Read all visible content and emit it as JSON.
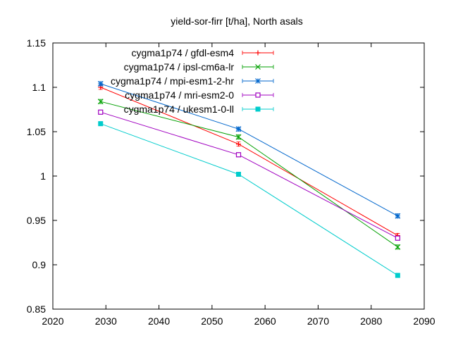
{
  "chart_data": {
    "type": "line",
    "title": "yield-sor-firr [t/ha], North asals",
    "xlabel": "",
    "ylabel": "",
    "xlim": [
      2020,
      2090
    ],
    "ylim": [
      0.85,
      1.15
    ],
    "xticks": [
      2020,
      2030,
      2040,
      2050,
      2060,
      2070,
      2080,
      2090
    ],
    "yticks": [
      0.85,
      0.9,
      0.95,
      1,
      1.05,
      1.1,
      1.15
    ],
    "ytick_labels": [
      "0.85",
      "0.9",
      "0.95",
      "1",
      "1.05",
      "1.1",
      "1.15"
    ],
    "grid": false,
    "legend_position": "top-right",
    "series": [
      {
        "name": "cygma1p74 / gfdl-esm4",
        "color": "#ff0000",
        "marker": "plus",
        "x": [
          2029,
          2055,
          2085
        ],
        "y": [
          1.1,
          1.036,
          0.933
        ]
      },
      {
        "name": "cygma1p74 / ipsl-cm6a-lr",
        "color": "#00a000",
        "marker": "cross",
        "x": [
          2029,
          2055,
          2085
        ],
        "y": [
          1.084,
          1.044,
          0.92
        ]
      },
      {
        "name": "cygma1p74 / mpi-esm1-2-hr",
        "color": "#0066cc",
        "marker": "star",
        "x": [
          2029,
          2055,
          2085
        ],
        "y": [
          1.104,
          1.053,
          0.955
        ]
      },
      {
        "name": "cygma1p74 / mri-esm2-0",
        "color": "#a000c0",
        "marker": "square-open",
        "x": [
          2029,
          2055,
          2085
        ],
        "y": [
          1.072,
          1.024,
          0.93
        ]
      },
      {
        "name": "cygma1p74 / ukesm1-0-ll",
        "color": "#00cccc",
        "marker": "square-filled",
        "x": [
          2029,
          2055,
          2085
        ],
        "y": [
          1.059,
          1.002,
          0.888
        ]
      }
    ]
  }
}
